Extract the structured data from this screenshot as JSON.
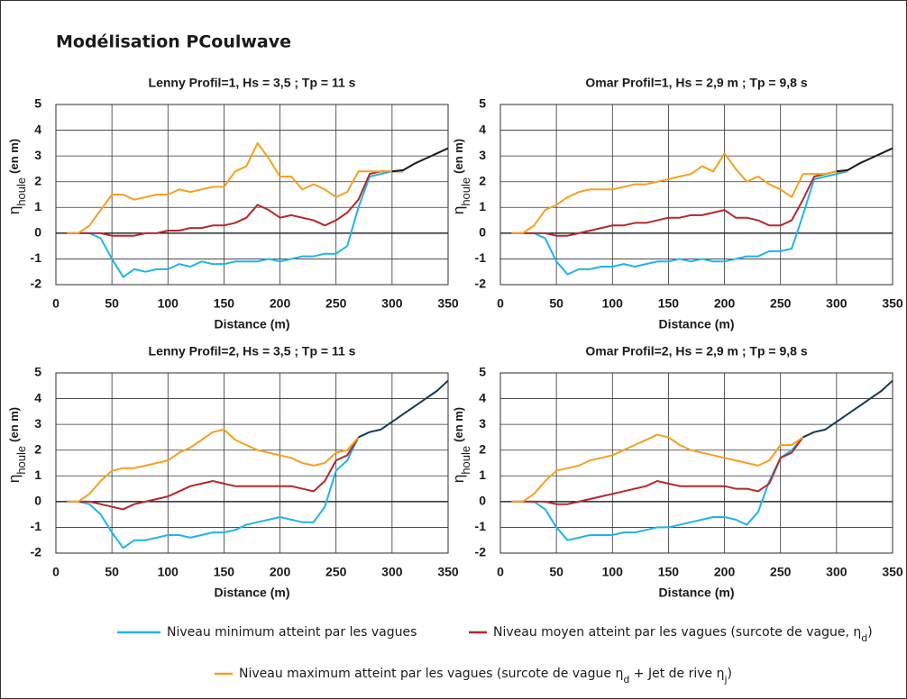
{
  "title": "Modélisation PCoulwave",
  "legend": [
    {
      "color": "#1fb4e8",
      "label": [
        {
          "text": "Niveau minimum atteint par les vagues"
        }
      ]
    },
    {
      "color": "#b5272d",
      "label": [
        {
          "text": "Niveau moyen atteint par les vagues (surcote de vague, η"
        },
        {
          "text": "d",
          "sub": true
        },
        {
          "text": ")"
        }
      ]
    },
    {
      "color": "#f5a020",
      "label": [
        {
          "text": "Niveau maximum atteint par les vagues (surcote de vague  η"
        },
        {
          "text": "d",
          "sub": true
        },
        {
          "text": " + Jet de rive η"
        },
        {
          "text": "j",
          "sub": true
        },
        {
          "text": ")"
        }
      ]
    }
  ],
  "chart_data": [
    {
      "type": "line",
      "title": "Lenny Profil=1, Hs = 3,5 ; Tp = 11 s",
      "xlabel": "Distance (m)",
      "ylabel": {
        "symbol": "η",
        "sub": "houle",
        "unit": "(en m)"
      },
      "xlim": [
        0,
        350
      ],
      "ylim": [
        -2,
        5
      ],
      "xticks": [
        0,
        50,
        100,
        150,
        200,
        250,
        300,
        350
      ],
      "yticks": [
        -2,
        -1,
        0,
        1,
        2,
        3,
        4,
        5
      ],
      "grid": true,
      "x": [
        10,
        20,
        30,
        40,
        50,
        60,
        70,
        80,
        90,
        100,
        110,
        120,
        130,
        140,
        150,
        160,
        170,
        180,
        190,
        200,
        210,
        220,
        230,
        240,
        250,
        260,
        270,
        280,
        290,
        300,
        310,
        320,
        330,
        340,
        350
      ],
      "series": [
        {
          "color": "#1fb4e8",
          "values": [
            0,
            0,
            0,
            -0.2,
            -1.0,
            -1.7,
            -1.4,
            -1.5,
            -1.4,
            -1.4,
            -1.2,
            -1.3,
            -1.1,
            -1.2,
            -1.2,
            -1.1,
            -1.1,
            -1.1,
            -1.0,
            -1.1,
            -1.0,
            -0.9,
            -0.9,
            -0.8,
            -0.8,
            -0.5,
            1.0,
            2.2,
            2.3,
            2.4,
            2.4,
            null,
            null,
            null,
            null
          ]
        },
        {
          "color": "#b5272d",
          "values": [
            0,
            0,
            0,
            0,
            -0.1,
            -0.1,
            -0.1,
            0,
            0,
            0.1,
            0.1,
            0.2,
            0.2,
            0.3,
            0.3,
            0.4,
            0.6,
            1.1,
            0.9,
            0.6,
            0.7,
            0.6,
            0.5,
            0.3,
            0.5,
            0.8,
            1.3,
            2.3,
            2.4,
            2.4,
            2.4,
            null,
            null,
            null,
            null
          ]
        },
        {
          "color": "#f5a020",
          "values": [
            0,
            0,
            0.3,
            0.9,
            1.5,
            1.5,
            1.3,
            1.4,
            1.5,
            1.5,
            1.7,
            1.6,
            1.7,
            1.8,
            1.8,
            2.4,
            2.6,
            3.5,
            2.9,
            2.2,
            2.2,
            1.7,
            1.9,
            1.7,
            1.4,
            1.6,
            2.4,
            2.4,
            2.4,
            2.4,
            2.4,
            null,
            null,
            null,
            null
          ]
        },
        {
          "color": "#1a1a1a",
          "values": [
            null,
            null,
            null,
            null,
            null,
            null,
            null,
            null,
            null,
            null,
            null,
            null,
            null,
            null,
            null,
            null,
            null,
            null,
            null,
            null,
            null,
            null,
            null,
            null,
            null,
            null,
            null,
            null,
            null,
            2.4,
            2.45,
            2.7,
            2.9,
            3.1,
            3.3
          ]
        }
      ]
    },
    {
      "type": "line",
      "title": "Omar Profil=1, Hs = 2,9 m ; Tp = 9,8 s",
      "xlabel": "Distance (m)",
      "ylabel": {
        "symbol": "η",
        "sub": "houle",
        "unit": "(en m)"
      },
      "xlim": [
        0,
        350
      ],
      "ylim": [
        -2,
        5
      ],
      "xticks": [
        0,
        50,
        100,
        150,
        200,
        250,
        300,
        350
      ],
      "yticks": [
        -2,
        -1,
        0,
        1,
        2,
        3,
        4,
        5
      ],
      "grid": true,
      "x": [
        10,
        20,
        30,
        40,
        50,
        60,
        70,
        80,
        90,
        100,
        110,
        120,
        130,
        140,
        150,
        160,
        170,
        180,
        190,
        200,
        210,
        220,
        230,
        240,
        250,
        260,
        270,
        280,
        290,
        300,
        310,
        320,
        330,
        340,
        350
      ],
      "series": [
        {
          "color": "#1fb4e8",
          "values": [
            0,
            0,
            0,
            -0.2,
            -1.1,
            -1.6,
            -1.4,
            -1.4,
            -1.3,
            -1.3,
            -1.2,
            -1.3,
            -1.2,
            -1.1,
            -1.1,
            -1.0,
            -1.1,
            -1.0,
            -1.1,
            -1.1,
            -1.0,
            -0.9,
            -0.9,
            -0.7,
            -0.7,
            -0.6,
            0.7,
            2.1,
            2.2,
            2.3,
            2.4,
            null,
            null,
            null,
            null
          ]
        },
        {
          "color": "#b5272d",
          "values": [
            0,
            0,
            0,
            0,
            -0.1,
            -0.1,
            0,
            0.1,
            0.2,
            0.3,
            0.3,
            0.4,
            0.4,
            0.5,
            0.6,
            0.6,
            0.7,
            0.7,
            0.8,
            0.9,
            0.6,
            0.6,
            0.5,
            0.3,
            0.3,
            0.5,
            1.3,
            2.2,
            2.3,
            2.4,
            2.4,
            null,
            null,
            null,
            null
          ]
        },
        {
          "color": "#f5a020",
          "values": [
            0,
            0,
            0.3,
            0.9,
            1.1,
            1.4,
            1.6,
            1.7,
            1.7,
            1.7,
            1.8,
            1.9,
            1.9,
            2.0,
            2.1,
            2.2,
            2.3,
            2.6,
            2.4,
            3.1,
            2.5,
            2.0,
            2.2,
            1.9,
            1.7,
            1.4,
            2.3,
            2.3,
            2.3,
            2.4,
            2.4,
            null,
            null,
            null,
            null
          ]
        },
        {
          "color": "#1a1a1a",
          "values": [
            null,
            null,
            null,
            null,
            null,
            null,
            null,
            null,
            null,
            null,
            null,
            null,
            null,
            null,
            null,
            null,
            null,
            null,
            null,
            null,
            null,
            null,
            null,
            null,
            null,
            null,
            null,
            null,
            null,
            2.4,
            2.45,
            2.7,
            2.9,
            3.1,
            3.3
          ]
        }
      ]
    },
    {
      "type": "line",
      "title": "Lenny Profil=2, Hs = 3,5 ; Tp = 11 s",
      "xlabel": "Distance (m)",
      "ylabel": {
        "symbol": "η",
        "sub": "houle",
        "unit": "(en m)"
      },
      "xlim": [
        0,
        350
      ],
      "ylim": [
        -2,
        5
      ],
      "xticks": [
        0,
        50,
        100,
        150,
        200,
        250,
        300,
        350
      ],
      "yticks": [
        -2,
        -1,
        0,
        1,
        2,
        3,
        4,
        5
      ],
      "grid": true,
      "x": [
        10,
        20,
        30,
        40,
        50,
        60,
        70,
        80,
        90,
        100,
        110,
        120,
        130,
        140,
        150,
        160,
        170,
        180,
        190,
        200,
        210,
        220,
        230,
        240,
        250,
        260,
        270,
        280,
        290,
        300,
        310,
        320,
        330,
        340,
        350
      ],
      "series": [
        {
          "color": "#1fb4e8",
          "values": [
            0,
            0,
            -0.1,
            -0.5,
            -1.2,
            -1.8,
            -1.5,
            -1.5,
            -1.4,
            -1.3,
            -1.3,
            -1.4,
            -1.3,
            -1.2,
            -1.2,
            -1.1,
            -0.9,
            -0.8,
            -0.7,
            -0.6,
            -0.7,
            -0.8,
            -0.8,
            -0.2,
            1.2,
            1.6,
            2.5,
            null,
            null,
            null,
            null,
            null,
            null,
            null,
            null
          ]
        },
        {
          "color": "#b5272d",
          "values": [
            0,
            0,
            0,
            -0.1,
            -0.2,
            -0.3,
            -0.1,
            0,
            0.1,
            0.2,
            0.4,
            0.6,
            0.7,
            0.8,
            0.7,
            0.6,
            0.6,
            0.6,
            0.6,
            0.6,
            0.6,
            0.5,
            0.4,
            0.8,
            1.6,
            1.8,
            2.5,
            null,
            null,
            null,
            null,
            null,
            null,
            null,
            null
          ]
        },
        {
          "color": "#f5a020",
          "values": [
            0,
            0,
            0.3,
            0.8,
            1.2,
            1.3,
            1.3,
            1.4,
            1.5,
            1.6,
            1.9,
            2.1,
            2.4,
            2.7,
            2.8,
            2.4,
            2.2,
            2.0,
            1.9,
            1.8,
            1.7,
            1.5,
            1.4,
            1.5,
            1.9,
            2.0,
            2.5,
            null,
            null,
            null,
            null,
            null,
            null,
            null,
            null
          ]
        },
        {
          "color": "#123a5a",
          "values": [
            null,
            null,
            null,
            null,
            null,
            null,
            null,
            null,
            null,
            null,
            null,
            null,
            null,
            null,
            null,
            null,
            null,
            null,
            null,
            null,
            null,
            null,
            null,
            null,
            null,
            null,
            2.5,
            2.7,
            2.8,
            3.1,
            3.4,
            3.7,
            4.0,
            4.3,
            4.7
          ]
        }
      ]
    },
    {
      "type": "line",
      "title": "Omar Profil=2, Hs = 2,9 m ; Tp = 9,8 s",
      "xlabel": "Distance (m)",
      "ylabel": {
        "symbol": "η",
        "sub": "houle",
        "unit": "(en m)"
      },
      "xlim": [
        0,
        350
      ],
      "ylim": [
        -2,
        5
      ],
      "xticks": [
        0,
        50,
        100,
        150,
        200,
        250,
        300,
        350
      ],
      "yticks": [
        -2,
        -1,
        0,
        1,
        2,
        3,
        4,
        5
      ],
      "grid": true,
      "x": [
        10,
        20,
        30,
        40,
        50,
        60,
        70,
        80,
        90,
        100,
        110,
        120,
        130,
        140,
        150,
        160,
        170,
        180,
        190,
        200,
        210,
        220,
        230,
        240,
        250,
        260,
        270,
        280,
        290,
        300,
        310,
        320,
        330,
        340,
        350
      ],
      "series": [
        {
          "color": "#1fb4e8",
          "values": [
            0,
            0,
            0,
            -0.3,
            -1.0,
            -1.5,
            -1.4,
            -1.3,
            -1.3,
            -1.3,
            -1.2,
            -1.2,
            -1.1,
            -1.0,
            -1.0,
            -0.9,
            -0.8,
            -0.7,
            -0.6,
            -0.6,
            -0.7,
            -0.9,
            -0.4,
            0.8,
            1.7,
            2.0,
            2.5,
            null,
            null,
            null,
            null,
            null,
            null,
            null,
            null
          ]
        },
        {
          "color": "#b5272d",
          "values": [
            0,
            0,
            0,
            0,
            -0.1,
            -0.1,
            0,
            0.1,
            0.2,
            0.3,
            0.4,
            0.5,
            0.6,
            0.8,
            0.7,
            0.6,
            0.6,
            0.6,
            0.6,
            0.6,
            0.5,
            0.5,
            0.4,
            0.7,
            1.7,
            1.9,
            2.5,
            null,
            null,
            null,
            null,
            null,
            null,
            null,
            null
          ]
        },
        {
          "color": "#f5a020",
          "values": [
            0,
            0,
            0.3,
            0.8,
            1.2,
            1.3,
            1.4,
            1.6,
            1.7,
            1.8,
            2.0,
            2.2,
            2.4,
            2.6,
            2.5,
            2.2,
            2.0,
            1.9,
            1.8,
            1.7,
            1.6,
            1.5,
            1.4,
            1.6,
            2.2,
            2.2,
            2.5,
            null,
            null,
            null,
            null,
            null,
            null,
            null,
            null
          ]
        },
        {
          "color": "#123a5a",
          "values": [
            null,
            null,
            null,
            null,
            null,
            null,
            null,
            null,
            null,
            null,
            null,
            null,
            null,
            null,
            null,
            null,
            null,
            null,
            null,
            null,
            null,
            null,
            null,
            null,
            null,
            null,
            2.5,
            2.7,
            2.8,
            3.1,
            3.4,
            3.7,
            4.0,
            4.3,
            4.7
          ]
        }
      ]
    }
  ]
}
